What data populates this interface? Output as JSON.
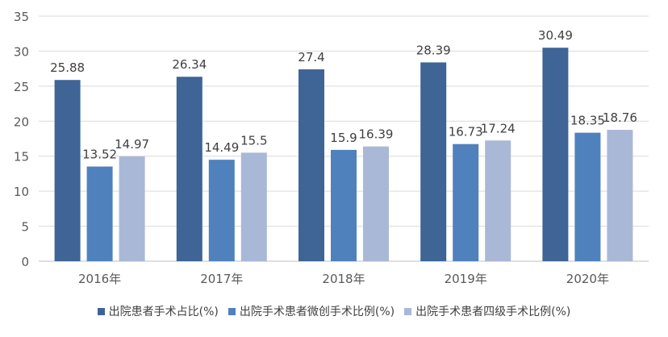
{
  "chart_data": {
    "type": "bar",
    "categories": [
      "2016年",
      "2017年",
      "2018年",
      "2019年",
      "2020年"
    ],
    "series": [
      {
        "name": "出院患者手术占比(%)",
        "color": "#3f6496",
        "values": [
          25.88,
          26.34,
          27.4,
          28.39,
          30.49
        ]
      },
      {
        "name": "出院手术患者微创手术比例(%)",
        "color": "#4f81bd",
        "values": [
          13.52,
          14.49,
          15.9,
          16.73,
          18.35
        ]
      },
      {
        "name": "出院手术患者四级手术比例(%)",
        "color": "#a9b8d6",
        "values": [
          14.97,
          15.5,
          16.39,
          17.24,
          18.76
        ]
      }
    ],
    "ylim": [
      0,
      35
    ],
    "yticks": [
      0,
      5,
      10,
      15,
      20,
      25,
      30,
      35
    ],
    "grid": true,
    "legend_position": "bottom",
    "title": "",
    "xlabel": "",
    "ylabel": ""
  }
}
